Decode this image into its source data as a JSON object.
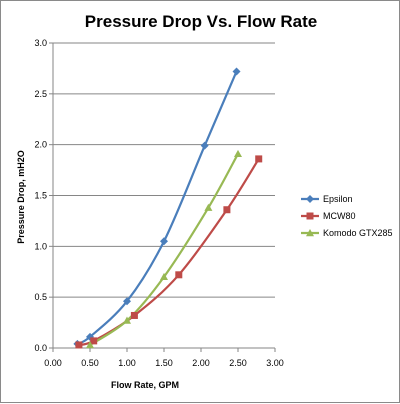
{
  "chart_data": {
    "type": "line",
    "title": "Pressure Drop Vs. Flow Rate",
    "xlabel": "Flow Rate, GPM",
    "ylabel": "Pressure Drop, mH2O",
    "xlim": [
      0,
      3
    ],
    "ylim": [
      0,
      3
    ],
    "x_ticks": [
      "0.00",
      "0.50",
      "1.00",
      "1.50",
      "2.00",
      "2.50",
      "3.00"
    ],
    "y_ticks": [
      "0.0",
      "0.5",
      "1.0",
      "1.5",
      "2.0",
      "2.5",
      "3.0"
    ],
    "grid": "horizontal",
    "legend_position": "right",
    "series": [
      {
        "name": "Epsilon",
        "color": "#4a7ebb",
        "marker": "diamond",
        "points": [
          [
            0.33,
            0.04
          ],
          [
            0.5,
            0.11
          ],
          [
            1.0,
            0.46
          ],
          [
            1.5,
            1.05
          ],
          [
            2.05,
            1.99
          ],
          [
            2.48,
            2.72
          ]
        ]
      },
      {
        "name": "MCW80",
        "color": "#be4b48",
        "marker": "square",
        "points": [
          [
            0.35,
            0.03
          ],
          [
            0.55,
            0.07
          ],
          [
            1.1,
            0.32
          ],
          [
            1.7,
            0.72
          ],
          [
            2.35,
            1.36
          ],
          [
            2.78,
            1.86
          ]
        ]
      },
      {
        "name": "Komodo GTX285",
        "color": "#98b954",
        "marker": "triangle",
        "points": [
          [
            0.5,
            0.03
          ],
          [
            1.0,
            0.27
          ],
          [
            1.5,
            0.7
          ],
          [
            2.1,
            1.38
          ],
          [
            2.5,
            1.91
          ]
        ]
      }
    ]
  }
}
